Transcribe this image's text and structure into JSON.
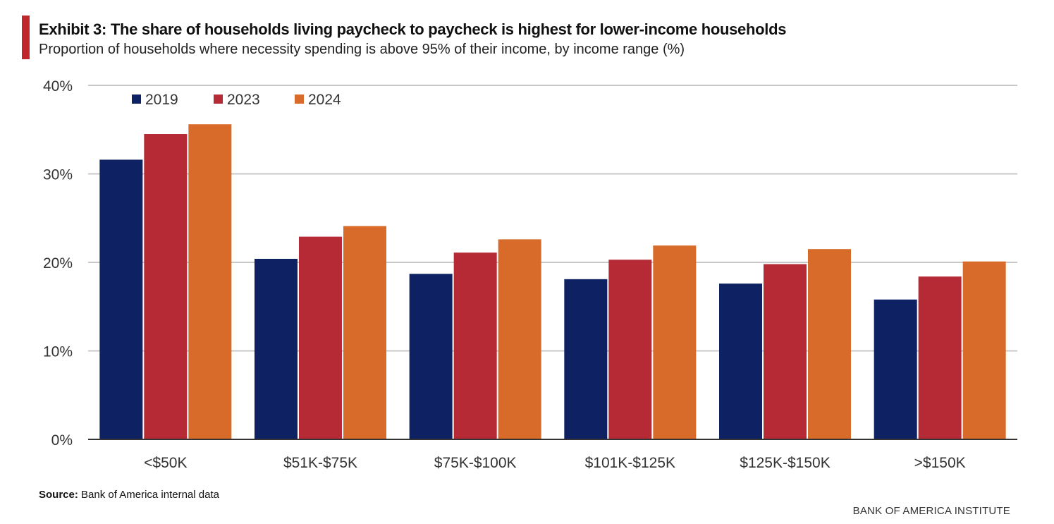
{
  "header": {
    "title": "Exhibit 3: The share of households living paycheck to paycheck is highest for lower-income households",
    "subtitle": "Proportion of households where necessity spending is above 95% of their income, by income range (%)"
  },
  "source": {
    "label": "Source:",
    "text": " Bank of America internal data"
  },
  "footer": {
    "brand": "BANK OF AMERICA INSTITUTE"
  },
  "colors": {
    "accent": "#c0272d",
    "series_2019": "#0d2163",
    "series_2023": "#b62a35",
    "series_2024": "#d86b2a",
    "gridline": "#c8c8c8",
    "axis": "#333333"
  },
  "chart_data": {
    "type": "bar",
    "title": "Exhibit 3: The share of households living paycheck to paycheck is highest for lower-income households",
    "xlabel": "",
    "ylabel": "",
    "categories": [
      "<$50K",
      "$51K-$75K",
      "$75K-$100K",
      "$101K-$125K",
      "$125K-$150K",
      ">$150K"
    ],
    "series": [
      {
        "name": "2019",
        "color": "#0d2163",
        "values": [
          31.6,
          20.4,
          18.7,
          18.1,
          17.6,
          15.8
        ]
      },
      {
        "name": "2023",
        "color": "#b62a35",
        "values": [
          34.5,
          22.9,
          21.1,
          20.3,
          19.8,
          18.4
        ]
      },
      {
        "name": "2024",
        "color": "#d86b2a",
        "values": [
          35.6,
          24.1,
          22.6,
          21.9,
          21.5,
          20.1
        ]
      }
    ],
    "ylim": [
      0,
      40
    ],
    "yticks": [
      0,
      10,
      20,
      30,
      40
    ],
    "ytick_labels": [
      "0%",
      "10%",
      "20%",
      "30%",
      "40%"
    ],
    "grid": true,
    "legend_position": "top-left"
  }
}
